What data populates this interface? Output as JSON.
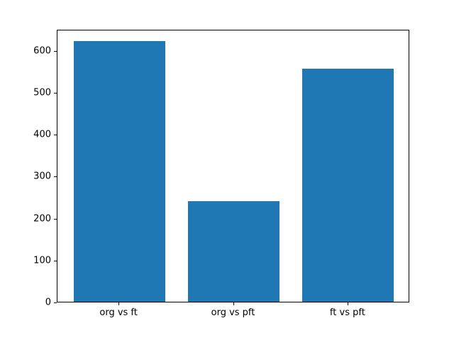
{
  "chart_data": {
    "type": "bar",
    "categories": [
      "org vs ft",
      "org vs pft",
      "ft vs pft"
    ],
    "values": [
      622,
      240,
      555
    ],
    "title": "",
    "xlabel": "",
    "ylabel": "",
    "ylim": [
      0,
      650
    ],
    "yticks": [
      0,
      100,
      200,
      300,
      400,
      500,
      600
    ],
    "bar_color": "#1f77b4",
    "axis_color": "#000000",
    "background_color": "#ffffff",
    "grid": false,
    "legend": null
  }
}
